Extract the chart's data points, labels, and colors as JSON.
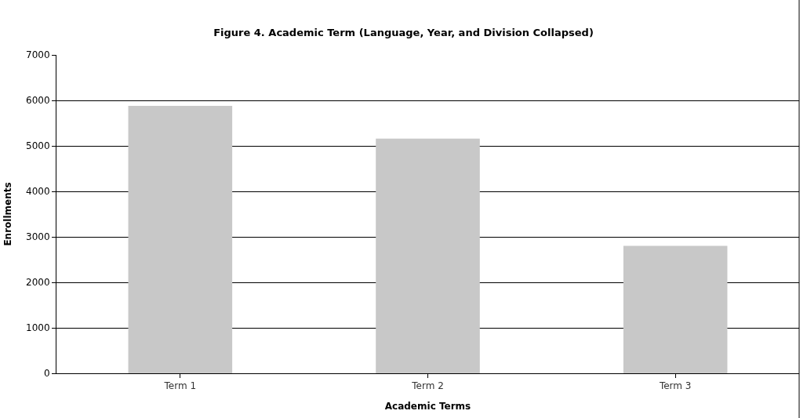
{
  "chart_data": {
    "type": "bar",
    "title": "Figure 4. Academic Term (Language, Year, and Division Collapsed)",
    "xlabel": "Academic Terms",
    "ylabel": "Enrollments",
    "categories": [
      "Term 1",
      "Term 2",
      "Term 3"
    ],
    "values": [
      5880,
      5160,
      2800
    ],
    "color": "#c8c8c8",
    "ylim": [
      0,
      7000
    ],
    "yticks": [
      0,
      1000,
      2000,
      3000,
      4000,
      5000,
      6000,
      7000
    ],
    "grid": "y",
    "legend": false
  }
}
